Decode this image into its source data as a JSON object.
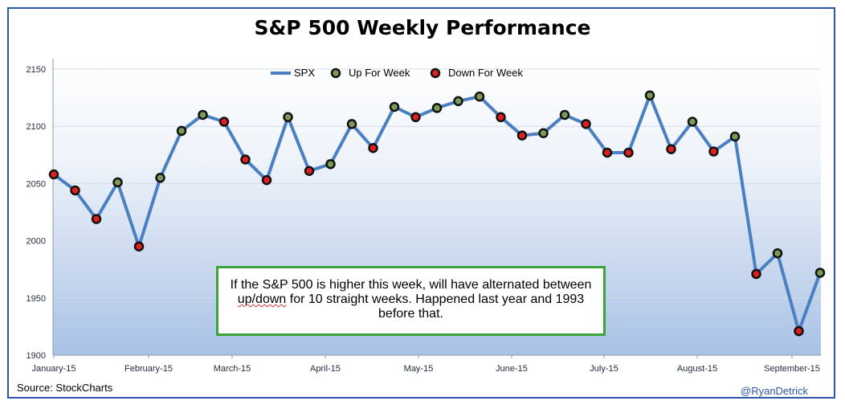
{
  "title": "S&P 500 Weekly Performance",
  "source": "Source:  StockCharts",
  "handle": "@RyanDetrick",
  "annotation": {
    "part1": "If the S&P 500 is higher this week, will have alternated between",
    "part2_squiggle": "up/down",
    "part3": " for 10 straight weeks.  Happened last year and 1993 before that."
  },
  "colors": {
    "line": "#4a7fc1",
    "up_marker": "#7a9a55",
    "down_marker": "#e02020",
    "annotation_border": "#3aa33a",
    "frame": "#2e56a8"
  },
  "chart_data": {
    "type": "line",
    "xlabels": [
      "January-15",
      "February-15",
      "March-15",
      "April-15",
      "May-15",
      "June-15",
      "July-15",
      "August-15",
      "September-15"
    ],
    "ylim": [
      1900,
      2150
    ],
    "yticks": [
      1900,
      1950,
      2000,
      2050,
      2100,
      2150
    ],
    "grid": true,
    "legend": {
      "placement": "top-center",
      "entries": [
        "SPX",
        "Up For Week",
        "Down For Week"
      ]
    },
    "series": [
      {
        "name": "SPX",
        "values": [
          2058,
          2044,
          2019,
          2051,
          1995,
          2055,
          2096,
          2110,
          2104,
          2071,
          2053,
          2108,
          2061,
          2067,
          2102,
          2081,
          2117,
          2108,
          2116,
          2122,
          2126,
          2108,
          2092,
          2094,
          2110,
          2102,
          2077,
          2077,
          2127,
          2080,
          2104,
          2078,
          2091,
          1971,
          1989,
          1921,
          1972
        ],
        "direction": [
          "down",
          "down",
          "down",
          "up",
          "down",
          "up",
          "up",
          "up",
          "down",
          "down",
          "down",
          "up",
          "down",
          "up",
          "up",
          "down",
          "up",
          "down",
          "up",
          "up",
          "up",
          "down",
          "down",
          "up",
          "up",
          "down",
          "down",
          "down",
          "up",
          "down",
          "up",
          "down",
          "up",
          "down",
          "up",
          "down",
          "up"
        ]
      }
    ]
  }
}
